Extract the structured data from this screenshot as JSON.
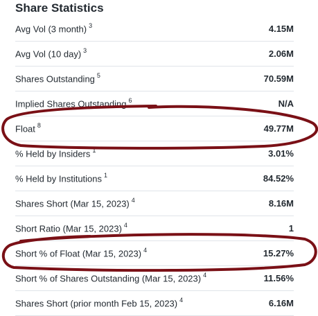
{
  "section": {
    "title": "Share Statistics"
  },
  "rows": [
    {
      "label": "Avg Vol (3 month)",
      "footnote": "3",
      "value": "4.15M"
    },
    {
      "label": "Avg Vol (10 day)",
      "footnote": "3",
      "value": "2.06M"
    },
    {
      "label": "Shares Outstanding",
      "footnote": "5",
      "value": "70.59M"
    },
    {
      "label": "Implied Shares Outstanding",
      "footnote": "6",
      "value": "N/A"
    },
    {
      "label": "Float",
      "footnote": "8",
      "value": "49.77M"
    },
    {
      "label": "% Held by Insiders",
      "footnote": "1",
      "value": "3.01%"
    },
    {
      "label": "% Held by Institutions",
      "footnote": "1",
      "value": "84.52%"
    },
    {
      "label": "Shares Short (Mar 15, 2023)",
      "footnote": "4",
      "value": "8.16M"
    },
    {
      "label": "Short Ratio (Mar 15, 2023)",
      "footnote": "4",
      "value": "1"
    },
    {
      "label": "Short % of Float (Mar 15, 2023)",
      "footnote": "4",
      "value": "15.27%"
    },
    {
      "label": "Short % of Shares Outstanding (Mar 15, 2023)",
      "footnote": "4",
      "value": "11.56%"
    },
    {
      "label": "Shares Short (prior month Feb 15, 2023)",
      "footnote": "4",
      "value": "6.16M"
    }
  ],
  "annotations": {
    "circle_color": "#7a1016"
  }
}
